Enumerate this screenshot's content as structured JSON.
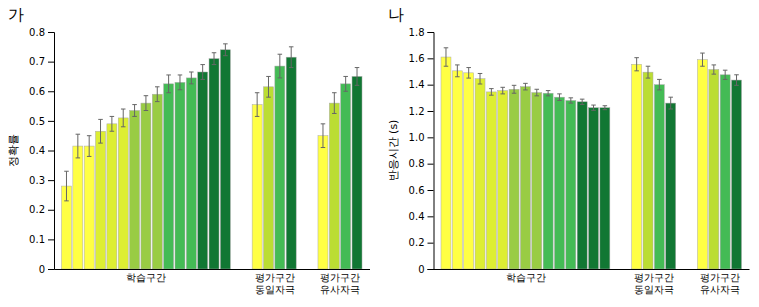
{
  "chart_data": [
    {
      "type": "bar",
      "title": "가",
      "ylabel": "정확률",
      "categories": [
        "학습구간",
        "평가구간\n동일자극",
        "평가구간\n유사자극"
      ],
      "values": [
        [
          0.28,
          0.415,
          0.415,
          0.465,
          0.49,
          0.51,
          0.535,
          0.56,
          0.59,
          0.625,
          0.63,
          0.645,
          0.665,
          0.71,
          0.74
        ],
        [
          0.555,
          0.615,
          0.685,
          0.715
        ],
        [
          0.45,
          0.56,
          0.625,
          0.65
        ]
      ],
      "errors": [
        [
          0.05,
          0.04,
          0.035,
          0.04,
          0.025,
          0.03,
          0.02,
          0.025,
          0.025,
          0.03,
          0.025,
          0.02,
          0.025,
          0.02,
          0.02
        ],
        [
          0.04,
          0.035,
          0.04,
          0.035
        ],
        [
          0.04,
          0.035,
          0.025,
          0.03
        ]
      ],
      "colors": [
        [
          "#FFFF44",
          "#FFFF44",
          "#FFFF44",
          "#DDEE33",
          "#DDEE33",
          "#DDEE33",
          "#99CC44",
          "#99CC44",
          "#99CC44",
          "#44BB55",
          "#44BB55",
          "#44BB55",
          "#117733",
          "#117733",
          "#117733"
        ],
        [
          "#FFFF44",
          "#BBDD33",
          "#44BB55",
          "#117733"
        ],
        [
          "#FFFF44",
          "#BBDD33",
          "#44BB55",
          "#117733"
        ]
      ],
      "ylim": [
        0,
        0.8
      ],
      "yticks": [
        0,
        0.1,
        0.2,
        0.3,
        0.4,
        0.5,
        0.6,
        0.7,
        0.8
      ],
      "grid": false
    },
    {
      "type": "bar",
      "title": "나",
      "ylabel": "반응시간 (s)",
      "categories": [
        "학습구간",
        "평가구간\n동일자극",
        "평가구간\n유사자극"
      ],
      "values": [
        [
          1.61,
          1.505,
          1.49,
          1.445,
          1.345,
          1.355,
          1.365,
          1.385,
          1.34,
          1.335,
          1.305,
          1.28,
          1.27,
          1.225,
          1.225
        ],
        [
          1.555,
          1.495,
          1.4,
          1.26
        ],
        [
          1.59,
          1.515,
          1.475,
          1.435
        ]
      ],
      "errors": [
        [
          0.07,
          0.045,
          0.04,
          0.04,
          0.025,
          0.025,
          0.03,
          0.025,
          0.025,
          0.02,
          0.025,
          0.02,
          0.02,
          0.02,
          0.015
        ],
        [
          0.05,
          0.045,
          0.04,
          0.045
        ],
        [
          0.05,
          0.035,
          0.035,
          0.04
        ]
      ],
      "colors": [
        [
          "#FFFF44",
          "#FFFF44",
          "#FFFF44",
          "#DDEE33",
          "#DDEE33",
          "#DDEE33",
          "#99CC44",
          "#99CC44",
          "#99CC44",
          "#44BB55",
          "#44BB55",
          "#44BB55",
          "#117733",
          "#117733",
          "#117733"
        ],
        [
          "#FFFF44",
          "#BBDD33",
          "#44BB55",
          "#117733"
        ],
        [
          "#FFFF44",
          "#BBDD33",
          "#44BB55",
          "#117733"
        ]
      ],
      "ylim": [
        0,
        1.8
      ],
      "yticks": [
        0,
        0.2,
        0.4,
        0.6,
        0.8,
        {
          "value": 1.0,
          "label": "1.0"
        },
        1.2,
        1.4,
        1.6,
        1.8
      ],
      "grid": false
    }
  ]
}
